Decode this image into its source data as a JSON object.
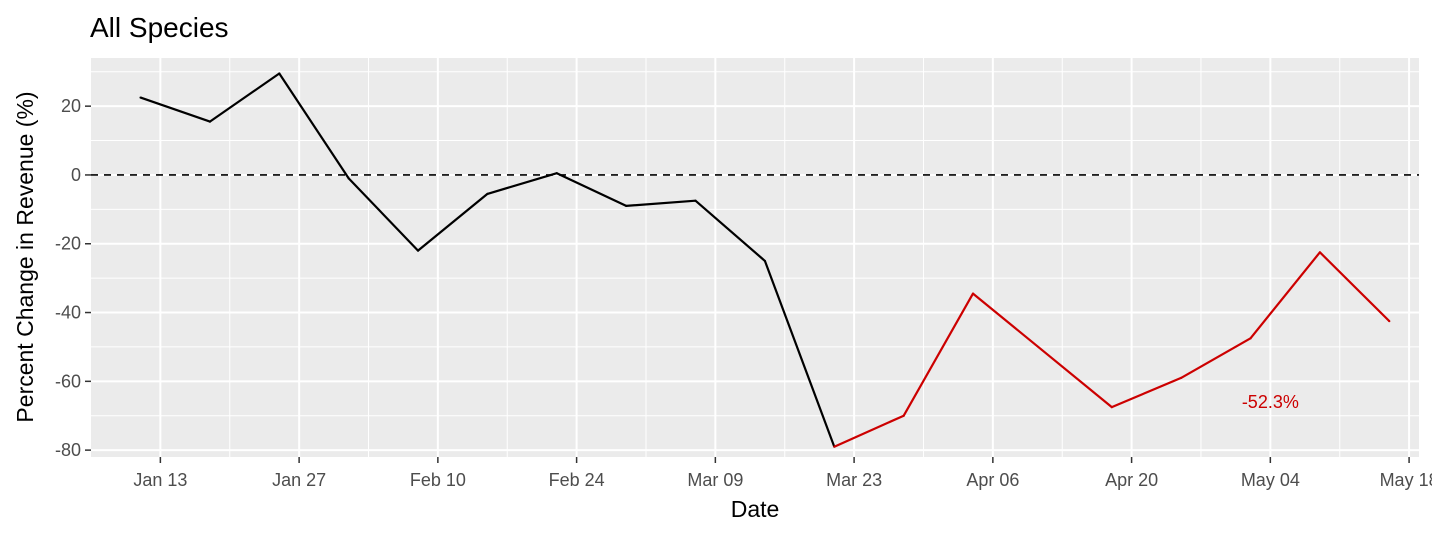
{
  "chart_data": {
    "type": "line",
    "title": "All Species",
    "xlabel": "Date",
    "ylabel": "Percent Change in Revenue (%)",
    "x_ticks": [
      "Jan 13",
      "Jan 27",
      "Feb 10",
      "Feb 24",
      "Mar 09",
      "Mar 23",
      "Apr 06",
      "Apr 20",
      "May 04",
      "May 18"
    ],
    "y_ticks": [
      20,
      0,
      -20,
      -40,
      -60,
      -80
    ],
    "ylim": [
      -82,
      34
    ],
    "xlim": [
      "2020-01-06",
      "2020-05-19"
    ],
    "grid": true,
    "reference_line": {
      "y": 0,
      "style": "dashed",
      "color": "#000000"
    },
    "colors": {
      "panel": "#ebebeb",
      "grid": "#ffffff",
      "pre_period": "#000000",
      "post_period": "#cc0000",
      "annotation": "#cc0000"
    },
    "series": [
      {
        "color": "#000000",
        "points": [
          {
            "x": "2020-01-11",
            "y": 22.5
          },
          {
            "x": "2020-01-18",
            "y": 15.5
          },
          {
            "x": "2020-01-25",
            "y": 29.5
          },
          {
            "x": "2020-02-01",
            "y": -1
          },
          {
            "x": "2020-02-08",
            "y": -22
          },
          {
            "x": "2020-02-15",
            "y": -5.5
          },
          {
            "x": "2020-02-22",
            "y": 0.5
          },
          {
            "x": "2020-02-29",
            "y": -9
          },
          {
            "x": "2020-03-07",
            "y": -7.5
          },
          {
            "x": "2020-03-14",
            "y": -25
          },
          {
            "x": "2020-03-21",
            "y": -79
          }
        ]
      },
      {
        "color": "#cc0000",
        "points": [
          {
            "x": "2020-03-21",
            "y": -79
          },
          {
            "x": "2020-03-28",
            "y": -70
          },
          {
            "x": "2020-04-04",
            "y": -34.5
          },
          {
            "x": "2020-04-18",
            "y": -67.5
          },
          {
            "x": "2020-04-25",
            "y": -59
          },
          {
            "x": "2020-05-02",
            "y": -47.5
          },
          {
            "x": "2020-05-09",
            "y": -22.5
          },
          {
            "x": "2020-05-16",
            "y": -42.5
          }
        ]
      }
    ],
    "annotations": [
      {
        "text": "-52.3%",
        "x": "2020-05-04",
        "y": -66,
        "color": "#cc0000"
      }
    ]
  }
}
